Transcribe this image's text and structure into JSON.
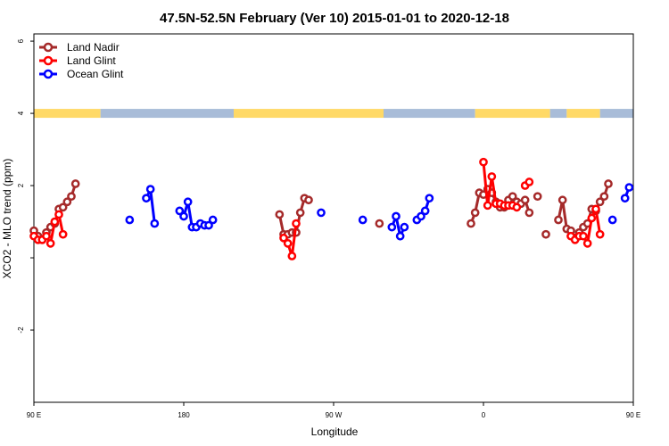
{
  "chart_data": {
    "type": "line",
    "title": "47.5N-52.5N February (Ver 10)   2015-01-01 to 2020-12-18",
    "xlabel": "Longitude",
    "ylabel": "XCO2 - MLO trend (ppm)",
    "xlim": [
      90,
      450
    ],
    "ylim": [
      -4,
      6.2
    ],
    "xticks": [
      {
        "value": 90,
        "label": "90 E"
      },
      {
        "value": 180,
        "label": "180"
      },
      {
        "value": 270,
        "label": "90 W"
      },
      {
        "value": 360,
        "label": "0"
      },
      {
        "value": 450,
        "label": "90 E"
      },
      {
        "value": 540,
        "label": "180"
      }
    ],
    "yticks": [
      {
        "value": -2,
        "label": "-2"
      },
      {
        "value": 0,
        "label": ""
      },
      {
        "value": 2,
        "label": "2"
      },
      {
        "value": 4,
        "label": "4"
      },
      {
        "value": 6,
        "label": "6"
      }
    ],
    "grid": false,
    "legend_position": "top-left",
    "series": [
      {
        "name": "Land Nadir",
        "color": "#a52a2a",
        "segments": [
          [
            [
              90,
              0.75
            ],
            [
              92.5,
              0.6
            ],
            [
              95,
              0.5
            ],
            [
              97.5,
              0.7
            ],
            [
              100,
              0.85
            ],
            [
              102.5,
              0.95
            ],
            [
              105,
              1.35
            ],
            [
              107.5,
              1.4
            ],
            [
              110,
              1.55
            ],
            [
              112.5,
              1.7
            ],
            [
              115,
              2.05
            ]
          ],
          [
            [
              237.5,
              1.2
            ],
            [
              240,
              0.65
            ],
            [
              242.5,
              0.65
            ],
            [
              245,
              0.7
            ],
            [
              247.5,
              0.7
            ],
            [
              250,
              1.25
            ],
            [
              252.5,
              1.65
            ],
            [
              255,
              1.6
            ]
          ],
          [
            [
              297.5,
              0.95
            ]
          ],
          [
            [
              352.5,
              0.95
            ],
            [
              355,
              1.25
            ],
            [
              357.5,
              1.8
            ],
            [
              360,
              1.75
            ],
            [
              362.5,
              1.9
            ],
            [
              365,
              1.8
            ],
            [
              367.5,
              1.55
            ],
            [
              370,
              1.4
            ],
            [
              372.5,
              1.4
            ],
            [
              375,
              1.6
            ],
            [
              377.5,
              1.7
            ],
            [
              380,
              1.55
            ],
            [
              382.5,
              1.5
            ],
            [
              385,
              1.6
            ],
            [
              387.5,
              1.25
            ]
          ],
          [
            [
              392.5,
              1.7
            ]
          ],
          [
            [
              397.5,
              0.65
            ]
          ],
          [
            [
              405,
              1.05
            ],
            [
              407.5,
              1.6
            ],
            [
              410,
              0.8
            ],
            [
              412.5,
              0.75
            ],
            [
              415,
              0.55
            ],
            [
              417.5,
              0.7
            ],
            [
              420,
              0.85
            ],
            [
              422.5,
              0.95
            ],
            [
              425,
              1.35
            ],
            [
              427.5,
              1.3
            ],
            [
              430,
              1.55
            ],
            [
              432.5,
              1.7
            ],
            [
              435,
              2.05
            ]
          ]
        ]
      },
      {
        "name": "Land Glint",
        "color": "#ff0000",
        "segments": [
          [
            [
              90,
              0.6
            ],
            [
              92.5,
              0.5
            ],
            [
              95,
              0.5
            ],
            [
              97.5,
              0.6
            ],
            [
              100,
              0.4
            ],
            [
              102.5,
              1.0
            ],
            [
              105,
              1.2
            ],
            [
              107.5,
              0.65
            ]
          ],
          [
            [
              240,
              0.55
            ],
            [
              242.5,
              0.4
            ],
            [
              245,
              0.05
            ],
            [
              247.5,
              0.95
            ]
          ],
          [
            [
              360,
              2.65
            ],
            [
              362.5,
              1.45
            ],
            [
              365,
              2.25
            ],
            [
              367.5,
              1.5
            ],
            [
              370,
              1.5
            ],
            [
              372.5,
              1.45
            ],
            [
              375,
              1.45
            ],
            [
              377.5,
              1.45
            ],
            [
              380,
              1.4
            ]
          ],
          [
            [
              385,
              2.0
            ],
            [
              387.5,
              2.1
            ]
          ],
          [
            [
              412.5,
              0.6
            ],
            [
              415,
              0.5
            ],
            [
              417.5,
              0.6
            ],
            [
              420,
              0.6
            ],
            [
              422.5,
              0.4
            ],
            [
              425,
              1.1
            ],
            [
              427.5,
              1.35
            ],
            [
              430,
              0.65
            ]
          ]
        ]
      },
      {
        "name": "Ocean Glint",
        "color": "#0000ff",
        "segments": [
          [
            [
              147.5,
              1.05
            ]
          ],
          [
            [
              157.5,
              1.65
            ],
            [
              160,
              1.9
            ],
            [
              162.5,
              0.95
            ]
          ],
          [
            [
              177.5,
              1.3
            ],
            [
              180,
              1.15
            ],
            [
              182.5,
              1.55
            ],
            [
              185,
              0.85
            ],
            [
              187.5,
              0.85
            ],
            [
              190,
              0.95
            ],
            [
              192.5,
              0.9
            ],
            [
              195,
              0.9
            ],
            [
              197.5,
              1.05
            ]
          ],
          [
            [
              262.5,
              1.25
            ]
          ],
          [
            [
              287.5,
              1.05
            ]
          ],
          [
            [
              305,
              0.85
            ],
            [
              307.5,
              1.15
            ],
            [
              310,
              0.6
            ],
            [
              312.5,
              0.85
            ]
          ],
          [
            [
              320,
              1.05
            ],
            [
              322.5,
              1.15
            ],
            [
              325,
              1.3
            ],
            [
              327.5,
              1.65
            ]
          ],
          [
            [
              437.5,
              1.05
            ]
          ],
          [
            [
              445,
              1.65
            ],
            [
              447.5,
              1.95
            ]
          ]
        ]
      }
    ],
    "surface_strip_colors": {
      "land": "#ffd966",
      "ocean": "#a8bcd8"
    },
    "surface_strip": {
      "y": 4,
      "ranges": [
        {
          "type": "land",
          "from": 90,
          "to": 130
        },
        {
          "type": "ocean",
          "from": 130,
          "to": 210
        },
        {
          "type": "land",
          "from": 210,
          "to": 300
        },
        {
          "type": "ocean",
          "from": 300,
          "to": 355
        },
        {
          "type": "land",
          "from": 355,
          "to": 400
        },
        {
          "type": "ocean",
          "from": 400,
          "to": 410
        },
        {
          "type": "land",
          "from": 410,
          "to": 430
        },
        {
          "type": "ocean",
          "from": 430,
          "to": 450
        }
      ]
    }
  }
}
